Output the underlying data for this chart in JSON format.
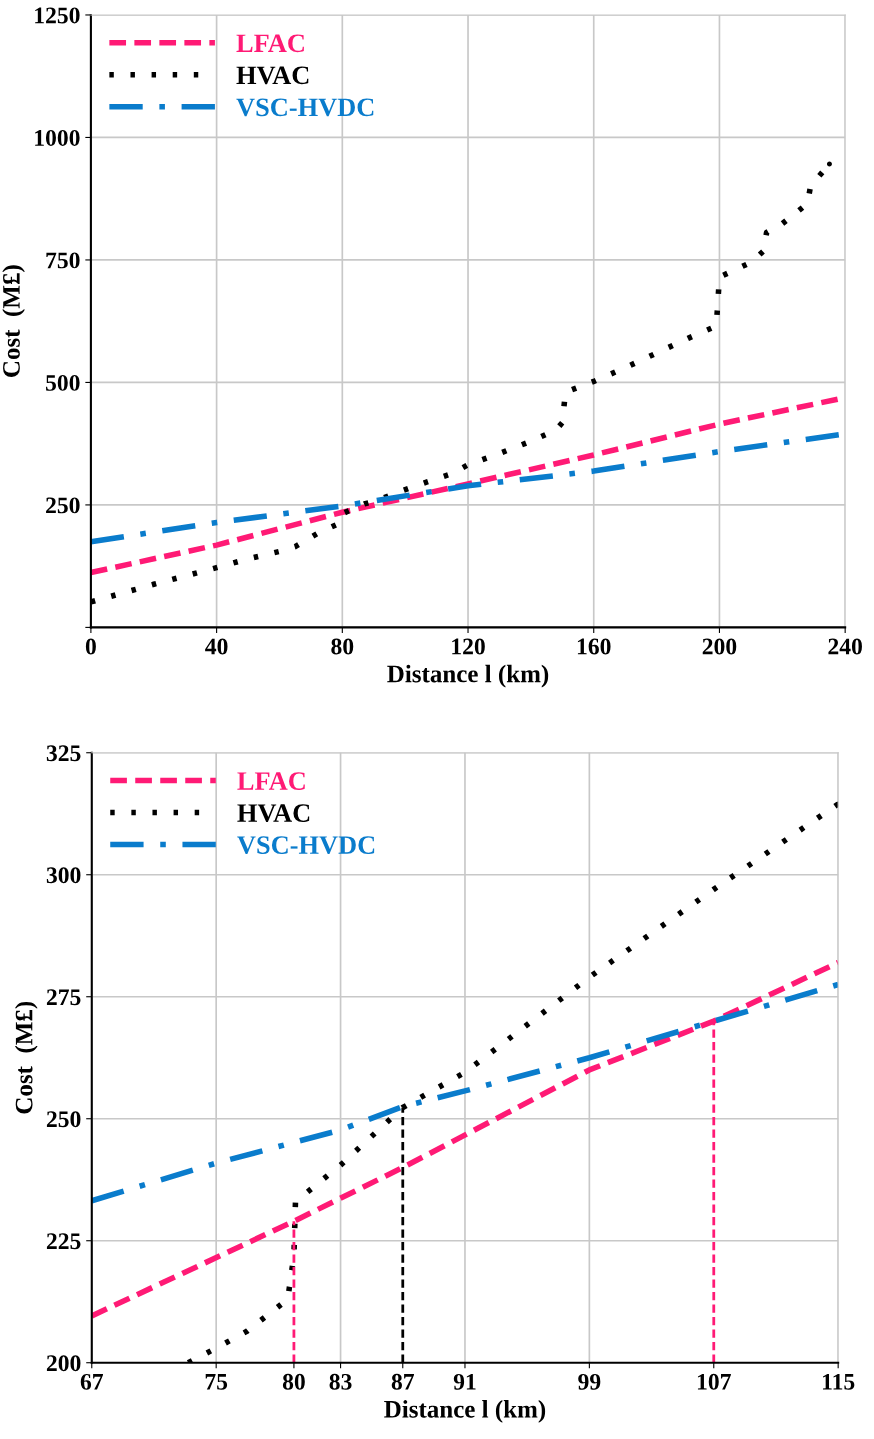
{
  "chart_data": [
    {
      "type": "line",
      "xlabel": "Distance l (km)",
      "ylabel": "Cost  (M£)",
      "xlim": [
        0,
        240
      ],
      "xticks": [
        0,
        40,
        80,
        120,
        160,
        200,
        240
      ],
      "ylim": [
        0,
        1250
      ],
      "yticks": [
        {
          "value": 0,
          "label": null
        },
        250,
        500,
        750,
        1000,
        1250
      ],
      "grid": true,
      "legend": "top left",
      "series": [
        {
          "name": "LFAC",
          "color": "#ff1a75",
          "line_style": "dashed",
          "x": [
            0,
            40,
            80,
            120,
            160,
            200,
            240
          ],
          "values": [
            112,
            168,
            235,
            293,
            352,
            415,
            469
          ]
        },
        {
          "name": "HVAC",
          "color": "#000000",
          "line_style": "dotted",
          "x": [
            0,
            10,
            20,
            30,
            40,
            50,
            60,
            65,
            73,
            79,
            80,
            87,
            91,
            99,
            107,
            115,
            120,
            130,
            140,
            148,
            150,
            151,
            160,
            170,
            180,
            190,
            199,
            200,
            210,
            214,
            215,
            220,
            228,
            229,
            235
          ],
          "values": [
            52,
            70,
            88,
            105,
            122,
            140,
            155,
            165,
            195,
            212,
            232,
            252,
            259,
            279,
            297,
            314,
            332,
            355,
            380,
            403,
            418,
            480,
            502,
            530,
            560,
            590,
            615,
            715,
            745,
            768,
            806,
            824,
            865,
            901,
            946
          ]
        },
        {
          "name": "VSC-HVDC",
          "color": "#0a7ccc",
          "line_style": "dashdot",
          "x": [
            0,
            40,
            80,
            120,
            160,
            200,
            240
          ],
          "values": [
            175,
            214,
            248,
            289,
            319,
            359,
            395
          ]
        }
      ]
    },
    {
      "type": "line",
      "xlabel": "Distance l (km)",
      "ylabel": "Cost  (M£)",
      "xlim": [
        67,
        115
      ],
      "xticks": [
        67,
        75,
        80,
        83,
        87,
        91,
        99,
        107,
        115
      ],
      "ylim": [
        200,
        325
      ],
      "yticks": [
        200,
        225,
        250,
        275,
        300,
        325
      ],
      "grid": true,
      "legend": "top left",
      "series": [
        {
          "name": "LFAC",
          "color": "#ff1a75",
          "line_style": "dashed",
          "x": [
            67,
            80,
            87,
            99,
            107,
            115
          ],
          "values": [
            209.6,
            229,
            240,
            260,
            270,
            282
          ]
        },
        {
          "name": "HVAC",
          "color": "#000000",
          "line_style": "dotted",
          "x": [
            73.2,
            75,
            77,
            79.6,
            80,
            80.1,
            83,
            87,
            91,
            99,
            107,
            115
          ],
          "values": [
            200,
            203,
            206.5,
            213,
            222,
            233,
            240.5,
            252.3,
            259.5,
            279,
            297,
            314.5
          ]
        },
        {
          "name": "VSC-HVDC",
          "color": "#0a7ccc",
          "line_style": "dashdot",
          "x": [
            67,
            75,
            83,
            87,
            91,
            99,
            107,
            115
          ],
          "values": [
            233.2,
            240.9,
            247.7,
            252.5,
            255.7,
            262.5,
            270,
            277.5
          ]
        },
        {
          "color": "#ff1a75",
          "line_style": "dashed",
          "x": [
            80,
            80
          ],
          "values": [
            200,
            229
          ]
        },
        {
          "color": "#000000",
          "line_style": "dashed",
          "x": [
            87,
            87
          ],
          "values": [
            200,
            252.3
          ]
        },
        {
          "color": "#ff1a75",
          "line_style": "dashed",
          "x": [
            107,
            107
          ],
          "values": [
            200,
            270
          ]
        }
      ]
    }
  ]
}
